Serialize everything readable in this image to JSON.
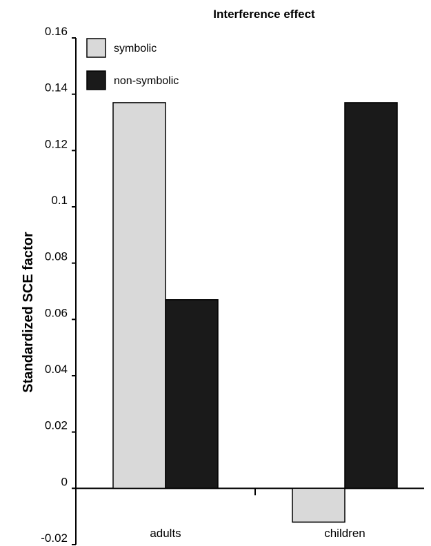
{
  "chart_data": {
    "type": "bar",
    "title": "Interference effect",
    "xlabel": "",
    "ylabel": "Standardized SCE factor",
    "categories": [
      "adults",
      "children"
    ],
    "series": [
      {
        "name": "symbolic",
        "values": [
          0.137,
          -0.012
        ],
        "color": "#d9d9d9"
      },
      {
        "name": "non-symbolic",
        "values": [
          0.067,
          0.137
        ],
        "color": "#1a1a1a"
      }
    ],
    "ylim": [
      -0.02,
      0.16
    ],
    "yticks": [
      -0.02,
      0,
      0.02,
      0.04,
      0.06,
      0.08,
      0.1,
      0.12,
      0.14,
      0.16
    ],
    "ytick_labels": [
      "-0.02",
      "0",
      "0.02",
      "0.04",
      "0.06",
      "0.08",
      "0.1",
      "0.12",
      "0.14",
      "0.16"
    ],
    "grid": false,
    "legend": "top-left"
  }
}
